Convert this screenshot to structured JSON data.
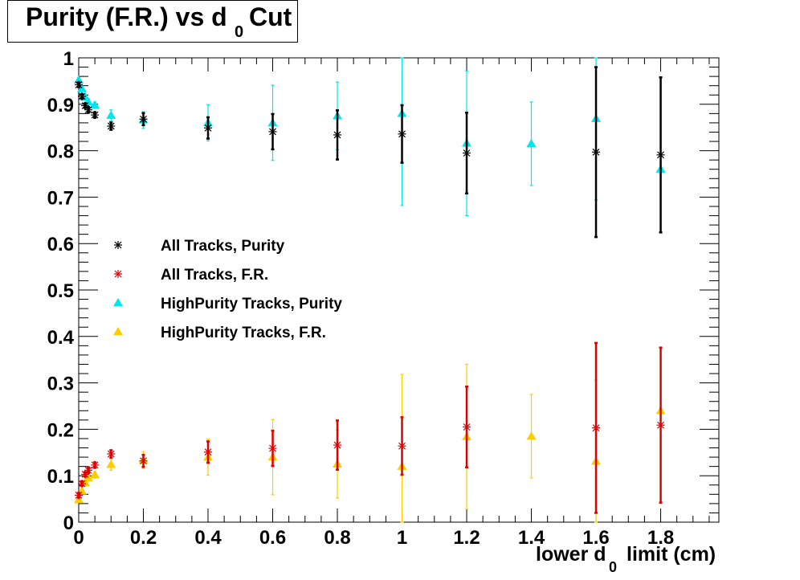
{
  "chart_data": {
    "type": "scatter",
    "title": {
      "prefix": "Purity (F.R.) vs d",
      "subscript": "0",
      "suffix": "Cut"
    },
    "xlabel": {
      "prefix": "lower d",
      "subscript": "0",
      "suffix": "limit (cm)"
    },
    "ylabel": "",
    "xlim": [
      0,
      1.98
    ],
    "ylim": [
      0,
      1
    ],
    "xticks": [
      0,
      0.2,
      0.4,
      0.6,
      0.8,
      1,
      1.2,
      1.4,
      1.6,
      1.8
    ],
    "yticks": [
      0,
      0.1,
      0.2,
      0.3,
      0.4,
      0.5,
      0.6,
      0.7,
      0.8,
      0.9,
      1
    ],
    "xtick_labels": [
      "0",
      "0.2",
      "0.4",
      "0.6",
      "0.8",
      "1",
      "1.2",
      "1.4",
      "1.6",
      "1.8"
    ],
    "ytick_labels": [
      "0",
      "0.1",
      "0.2",
      "0.3",
      "0.4",
      "0.5",
      "0.6",
      "0.7",
      "0.8",
      "0.9",
      "1"
    ],
    "grid": false,
    "legend_placement": "center-left",
    "series": [
      {
        "name": "All Tracks, Purity",
        "marker": "star",
        "color": "#000000",
        "points": [
          {
            "x": 0.0,
            "y": 0.942,
            "err": 0.005
          },
          {
            "x": 0.01,
            "y": 0.917,
            "err": 0.005
          },
          {
            "x": 0.02,
            "y": 0.897,
            "err": 0.005
          },
          {
            "x": 0.03,
            "y": 0.888,
            "err": 0.006
          },
          {
            "x": 0.05,
            "y": 0.877,
            "err": 0.006
          },
          {
            "x": 0.1,
            "y": 0.853,
            "err": 0.008
          },
          {
            "x": 0.2,
            "y": 0.868,
            "err": 0.013
          },
          {
            "x": 0.4,
            "y": 0.849,
            "err": 0.023
          },
          {
            "x": 0.6,
            "y": 0.841,
            "err": 0.038
          },
          {
            "x": 0.8,
            "y": 0.834,
            "err": 0.053
          },
          {
            "x": 1.0,
            "y": 0.836,
            "err": 0.062
          },
          {
            "x": 1.2,
            "y": 0.795,
            "err": 0.087
          },
          {
            "x": 1.6,
            "y": 0.797,
            "err": 0.183
          },
          {
            "x": 1.8,
            "y": 0.791,
            "err": 0.167
          }
        ]
      },
      {
        "name": "All Tracks, F.R.",
        "marker": "star",
        "color": "#e00000",
        "points": [
          {
            "x": 0.0,
            "y": 0.058,
            "err": 0.005
          },
          {
            "x": 0.01,
            "y": 0.083,
            "err": 0.005
          },
          {
            "x": 0.02,
            "y": 0.103,
            "err": 0.005
          },
          {
            "x": 0.03,
            "y": 0.112,
            "err": 0.006
          },
          {
            "x": 0.05,
            "y": 0.123,
            "err": 0.006
          },
          {
            "x": 0.1,
            "y": 0.147,
            "err": 0.008
          },
          {
            "x": 0.2,
            "y": 0.132,
            "err": 0.013
          },
          {
            "x": 0.4,
            "y": 0.151,
            "err": 0.023
          },
          {
            "x": 0.6,
            "y": 0.159,
            "err": 0.038
          },
          {
            "x": 0.8,
            "y": 0.166,
            "err": 0.053
          },
          {
            "x": 1.0,
            "y": 0.164,
            "err": 0.062
          },
          {
            "x": 1.2,
            "y": 0.205,
            "err": 0.087
          },
          {
            "x": 1.6,
            "y": 0.203,
            "err": 0.183
          },
          {
            "x": 1.8,
            "y": 0.209,
            "err": 0.167
          }
        ]
      },
      {
        "name": "HighPurity Tracks, Purity",
        "marker": "triangle",
        "color": "#00e5ee",
        "points": [
          {
            "x": 0.0,
            "y": 0.952,
            "err": 0.005
          },
          {
            "x": 0.01,
            "y": 0.933,
            "err": 0.005
          },
          {
            "x": 0.02,
            "y": 0.915,
            "err": 0.006
          },
          {
            "x": 0.03,
            "y": 0.905,
            "err": 0.006
          },
          {
            "x": 0.05,
            "y": 0.898,
            "err": 0.007
          },
          {
            "x": 0.1,
            "y": 0.876,
            "err": 0.012
          },
          {
            "x": 0.2,
            "y": 0.866,
            "err": 0.018
          },
          {
            "x": 0.4,
            "y": 0.86,
            "err": 0.039
          },
          {
            "x": 0.6,
            "y": 0.86,
            "err": 0.081
          },
          {
            "x": 0.8,
            "y": 0.875,
            "err": 0.073
          },
          {
            "x": 1.0,
            "y": 0.88,
            "err": 0.198
          },
          {
            "x": 1.2,
            "y": 0.816,
            "err": 0.156
          },
          {
            "x": 1.4,
            "y": 0.815,
            "err": 0.09
          },
          {
            "x": 1.6,
            "y": 0.869,
            "err": 0.175
          },
          {
            "x": 1.8,
            "y": 0.76,
            "err": 0.0
          }
        ]
      },
      {
        "name": "HighPurity Tracks, F.R.",
        "marker": "triangle",
        "color": "#ffcc00",
        "points": [
          {
            "x": 0.0,
            "y": 0.048,
            "err": 0.005
          },
          {
            "x": 0.01,
            "y": 0.067,
            "err": 0.005
          },
          {
            "x": 0.02,
            "y": 0.085,
            "err": 0.006
          },
          {
            "x": 0.03,
            "y": 0.095,
            "err": 0.006
          },
          {
            "x": 0.05,
            "y": 0.102,
            "err": 0.007
          },
          {
            "x": 0.1,
            "y": 0.124,
            "err": 0.012
          },
          {
            "x": 0.2,
            "y": 0.134,
            "err": 0.018
          },
          {
            "x": 0.4,
            "y": 0.14,
            "err": 0.039
          },
          {
            "x": 0.6,
            "y": 0.14,
            "err": 0.081
          },
          {
            "x": 0.8,
            "y": 0.125,
            "err": 0.073
          },
          {
            "x": 1.0,
            "y": 0.12,
            "err": 0.198
          },
          {
            "x": 1.2,
            "y": 0.184,
            "err": 0.156
          },
          {
            "x": 1.4,
            "y": 0.185,
            "err": 0.09
          },
          {
            "x": 1.6,
            "y": 0.131,
            "err": 0.175
          },
          {
            "x": 1.8,
            "y": 0.24,
            "err": 0.0
          }
        ]
      }
    ]
  }
}
